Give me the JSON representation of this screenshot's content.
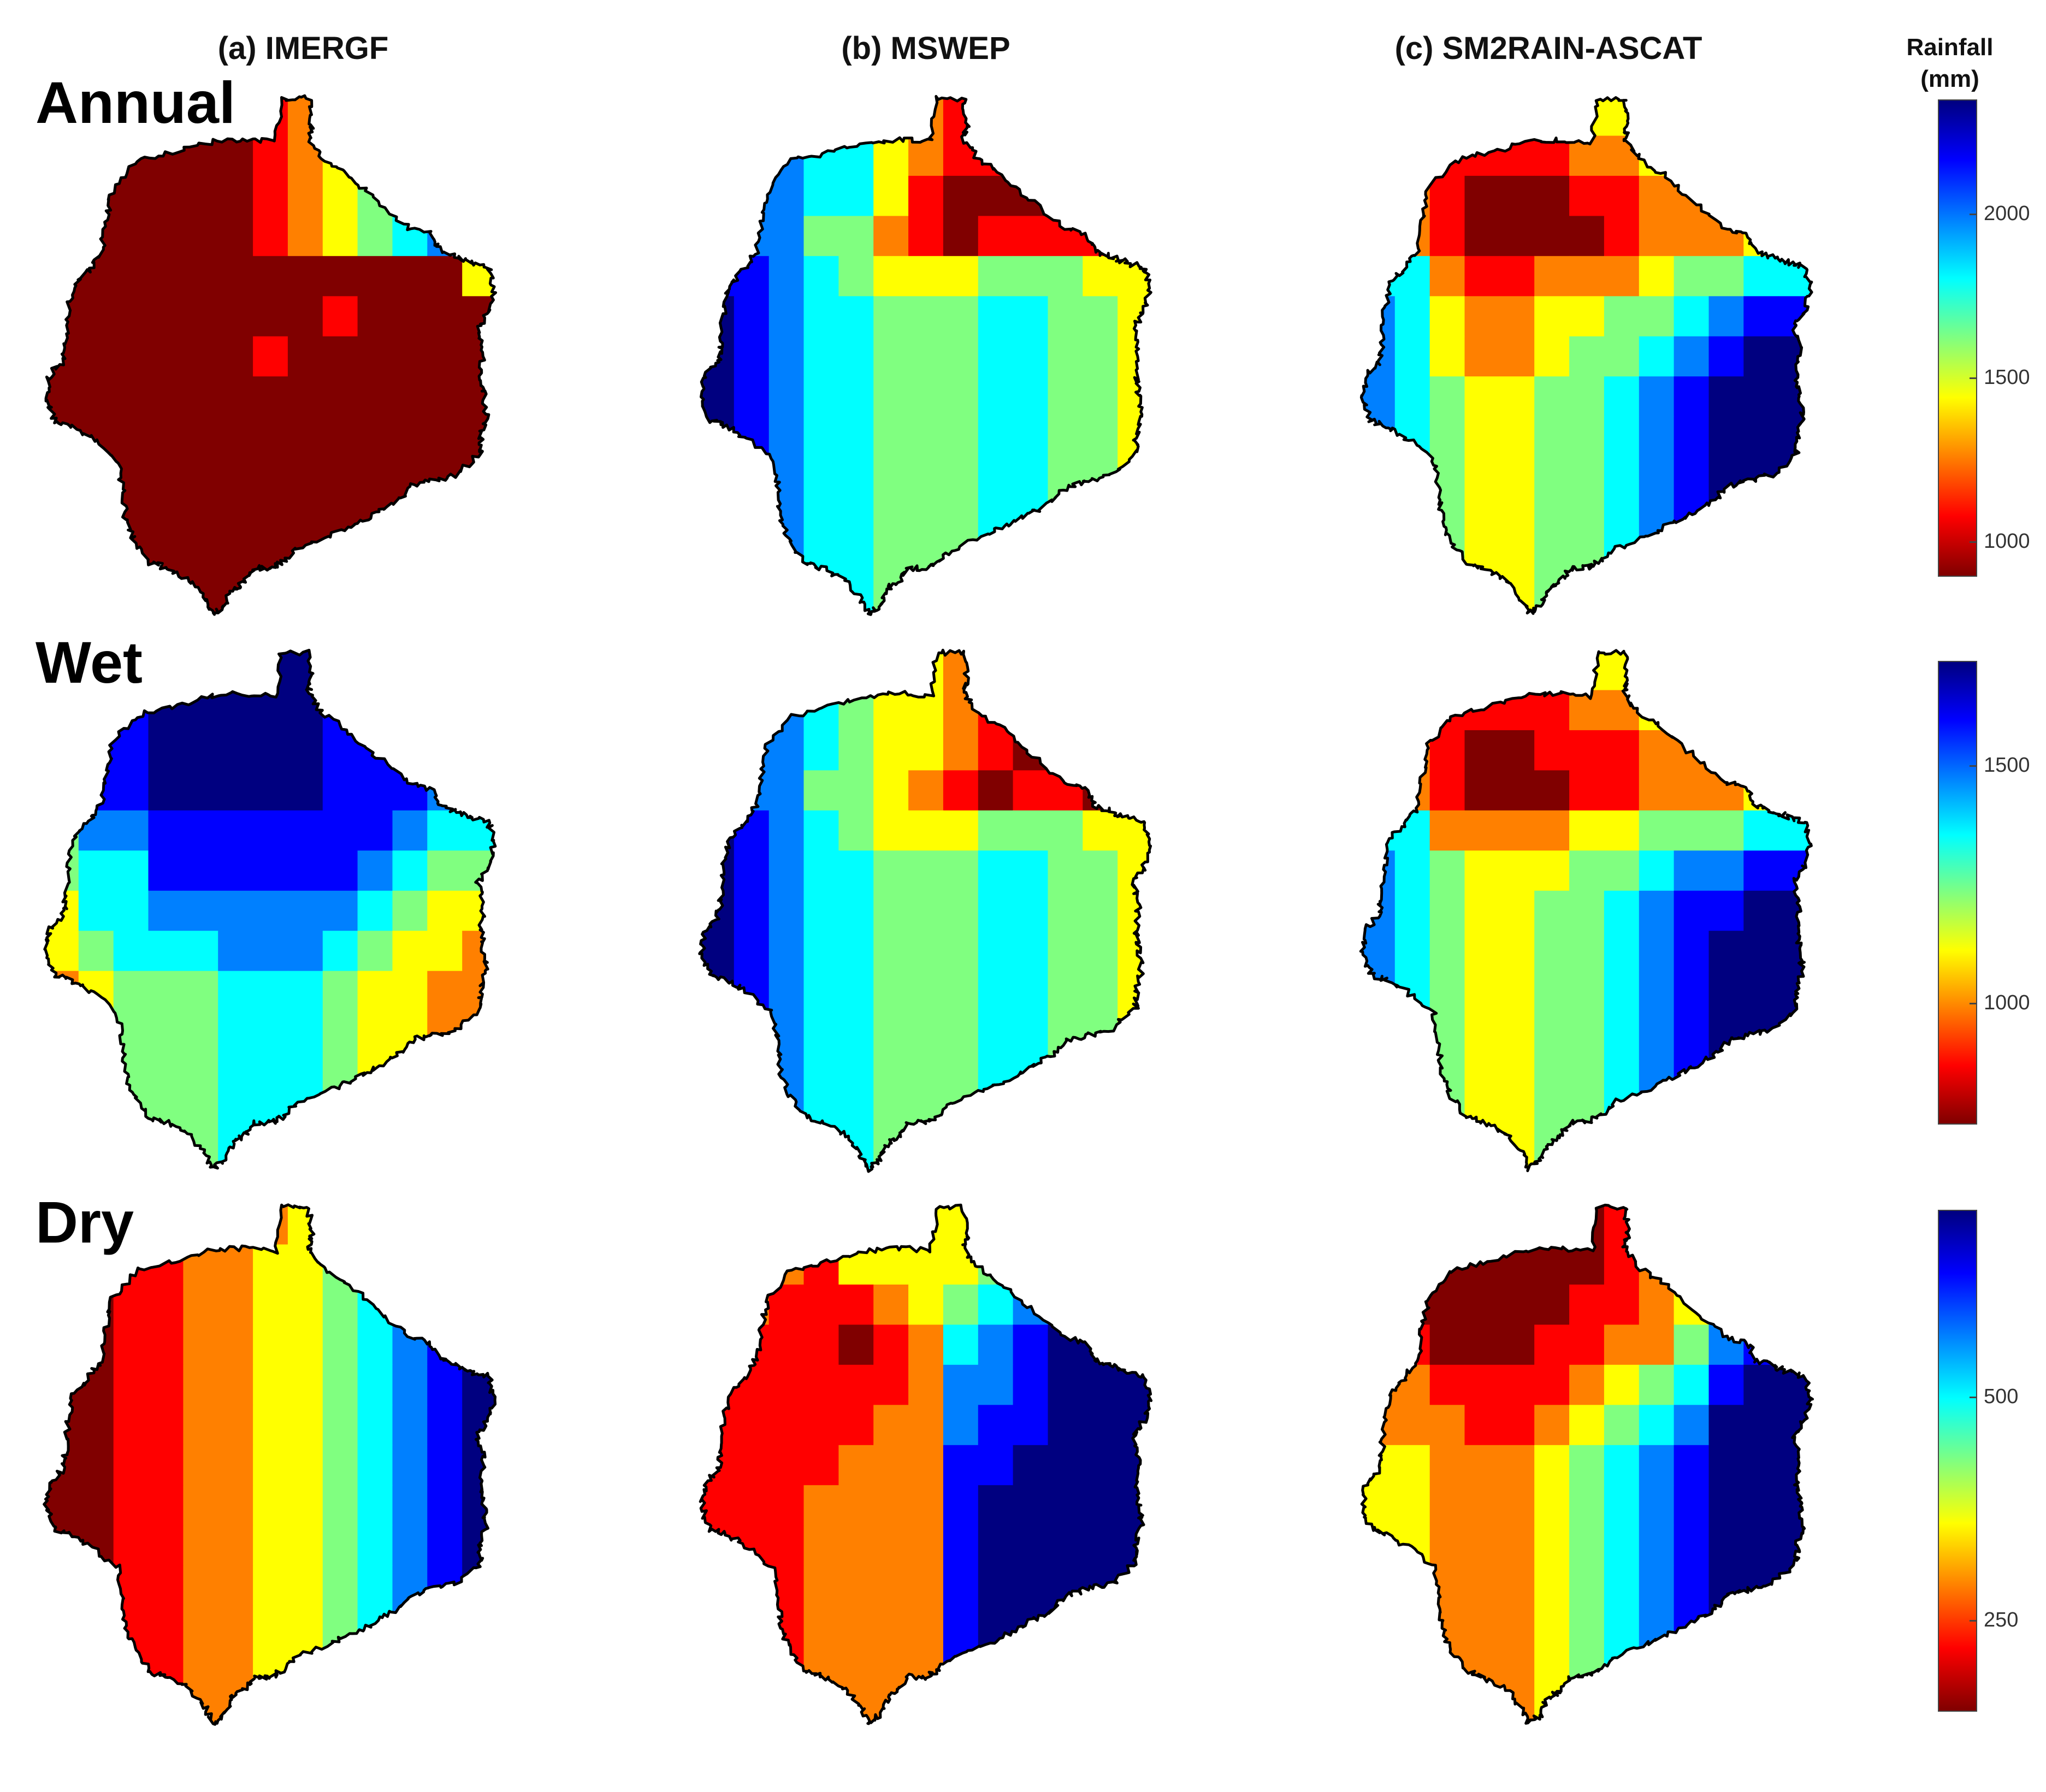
{
  "column_titles": [
    "(a) IMERGF",
    "(b) MSWEP",
    "(c) SM2RAIN-ASCAT"
  ],
  "row_titles": [
    "Annual",
    "Wet",
    "Dry"
  ],
  "colorbar": {
    "title_line1": "Rainfall",
    "title_line2": "(mm)",
    "colormap": "jet",
    "colors": [
      "#800000",
      "#ff0000",
      "#ff8000",
      "#ffff00",
      "#80ff80",
      "#00ffff",
      "#0080ff",
      "#0000ff",
      "#000080"
    ],
    "annual": {
      "min": 900,
      "max": 2350,
      "ticks": [
        1000,
        1500,
        2000
      ],
      "tick_labels": [
        "1000",
        "1500",
        "2000"
      ]
    },
    "wet": {
      "min": 750,
      "max": 1720,
      "ticks": [
        1000,
        1500
      ],
      "tick_labels": [
        "1000",
        "1500"
      ]
    },
    "dry": {
      "min": 150,
      "max": 710,
      "ticks": [
        250,
        500
      ],
      "tick_labels": [
        "250",
        "500"
      ]
    }
  },
  "map_data": {
    "grid_cols": 13,
    "grid_rows": 13,
    "grid_row_scale": 14,
    "panels": {
      "imergf_annual": "0000001234565;0000001234566;0000001234566;0000001234566;0000000000003;0000000010000;0000001000000;0000000000000;0000000000000;0000000000000;0000000000000;0000000000000;0000000000000",
      "imergf_wet": "6799888887777;5778888877766;5778888877766;5778888877766;4667777777655;4557777776544;3556666665433;3455566654332;2344455543322;2344455543322;2344455543322;2344455543322;2344455543322",
      "imergf_dry": "0011222345678;0011223345678;0011223345678;0011223345678;0011223345678;0011223345678;0011223345678;0011223345678;0011223345678;0011223345678;0011223345678;0011223345678;0011223345678",
      "mswep_annual": "6665532110000;6665532110000;6665531000000;7664421011111;7765433344433;8765544455443;8765544455443;8765544455443;8765544455443;8765544455443;8765544455443;8765544455443;8765544455443",
      "mswep_wet": "6665543210000;7665433210000;7665433210000;7664432101100;8765433344433;8765544455443;8765544455443;8765544455443;8765544455443;8765544455443;8765544455443;8765544455443;8765544455443",
      "mswep_dry": "2221333344556;2221333344556;2211123456777;1111012567888;1111112667888;1111122677888;1111222778888;1112222788888;1112222788888;1112222788888;1112222788888;1112222788888;1112222788888",
      "sm2rain_annual": "3322223334444;3211112233344;3210001122233;4210000122233;5521122234455;6532233445677;6532234456788;6543344567888;6543344567888;6543344567888;6543344567888;6543344567888;6543344567888",
      "sm2rain_wet": "3322223334444;3211112233333;3210011122233;4210001122233;5522223344455;6543334456677;6543344567788;6543344567888;6543344567888;6543344567888;6543344567888;6543344567888;6543344567888",
      "sm2rain_dry": "1110000123456;1100000123467;1000001123577;1100011224678;2211112345788;2221123456888;3322234567888;3322234567888;3322234567888;3322234567888;3322234567888;3322234567888;3322234567888"
    }
  }
}
